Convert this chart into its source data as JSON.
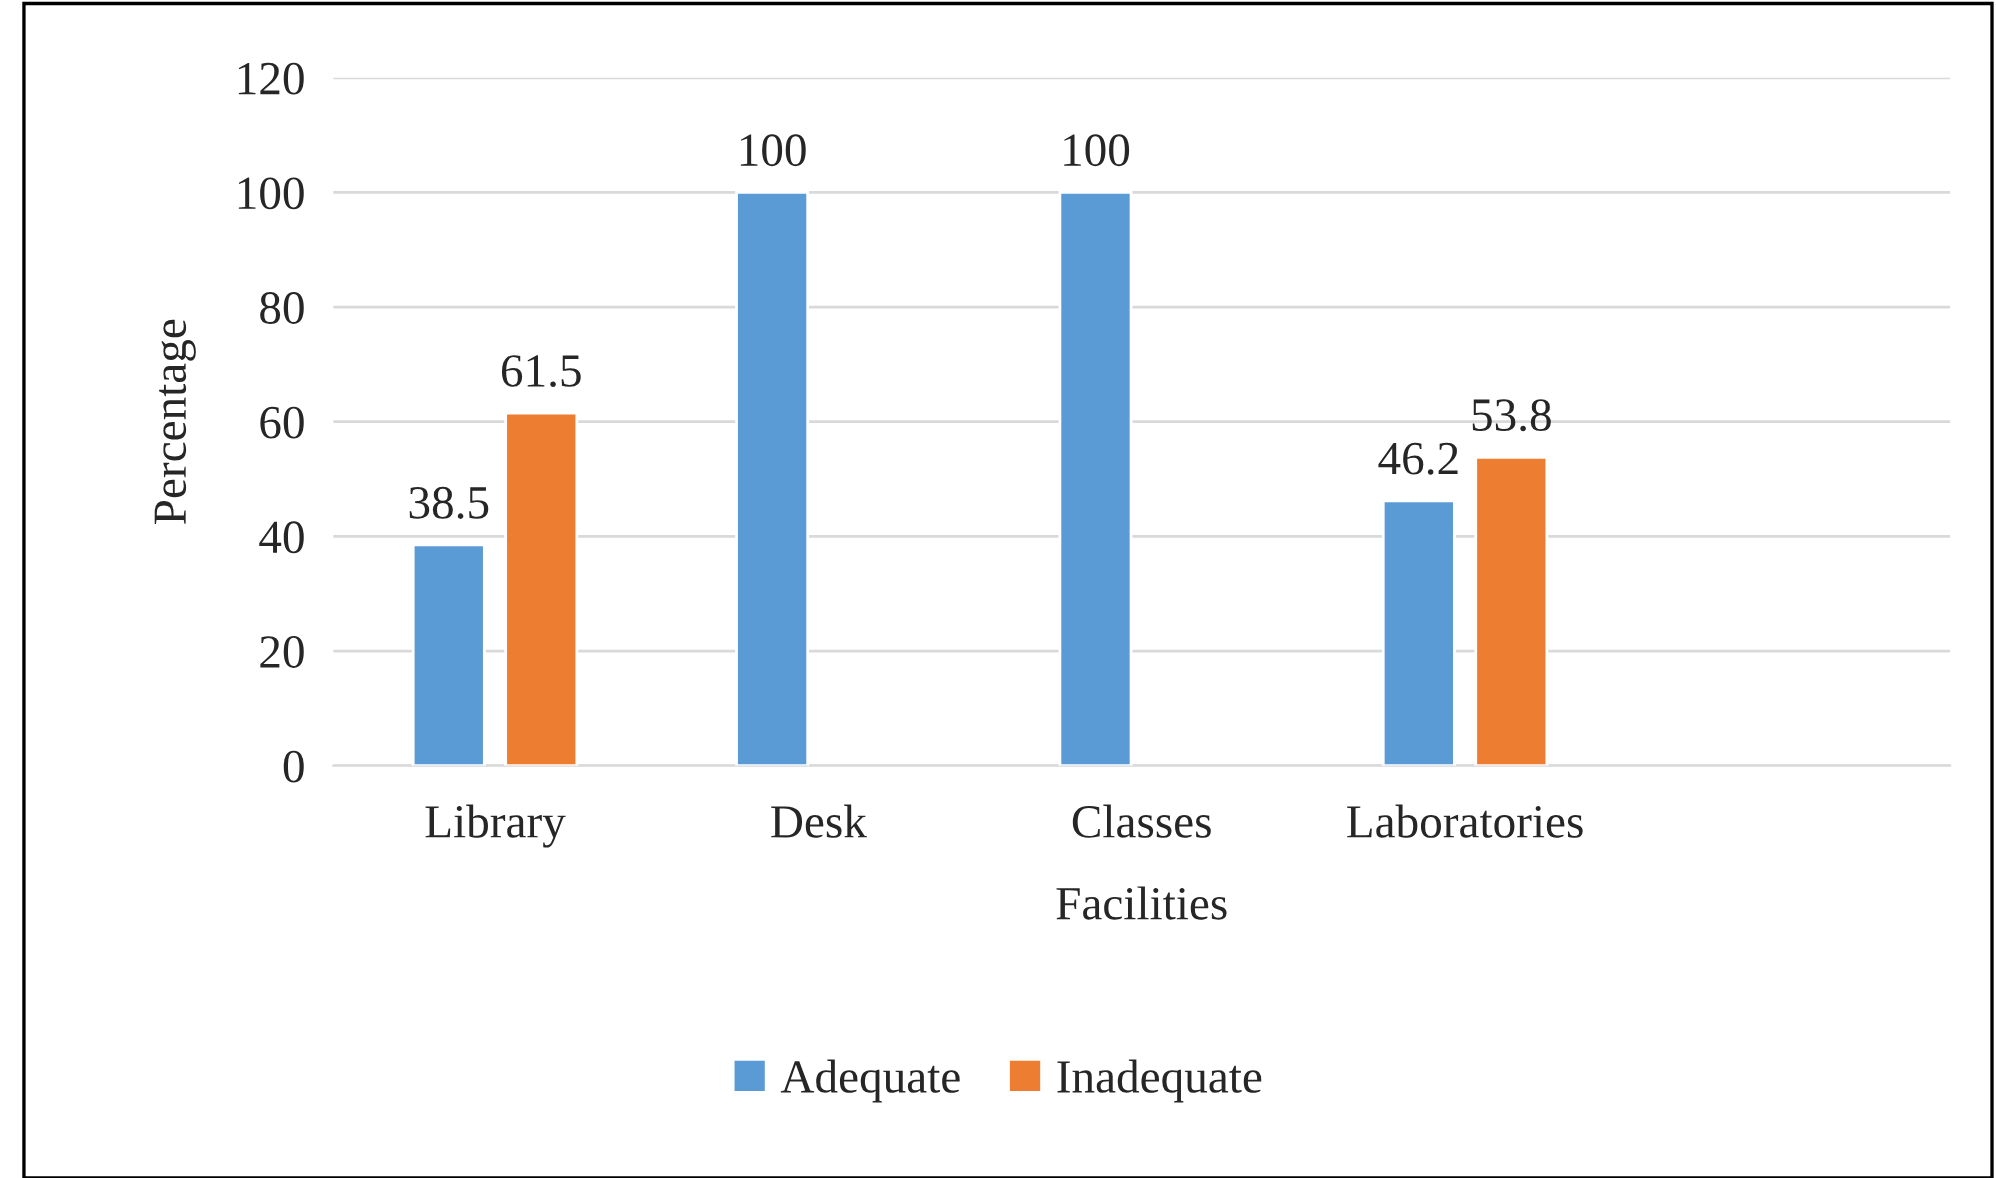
{
  "chart_data": {
    "type": "bar",
    "xlabel": "Facilities",
    "ylabel": "Percentage",
    "categories": [
      "Library",
      "Desk",
      "Classes",
      "Laboratories",
      null
    ],
    "series": [
      {
        "name": "Adequate",
        "color": "#5b9bd5",
        "values": [
          38.5,
          100,
          100,
          46.2,
          null
        ]
      },
      {
        "name": "Inadequate",
        "color": "#ed7d31",
        "values": [
          61.5,
          null,
          null,
          53.8,
          null
        ]
      }
    ],
    "ylim": [
      0,
      120
    ],
    "yticks": [
      0,
      20,
      40,
      60,
      80,
      100,
      120
    ],
    "grid": "y",
    "legend": "bottom",
    "data_labels": true
  }
}
